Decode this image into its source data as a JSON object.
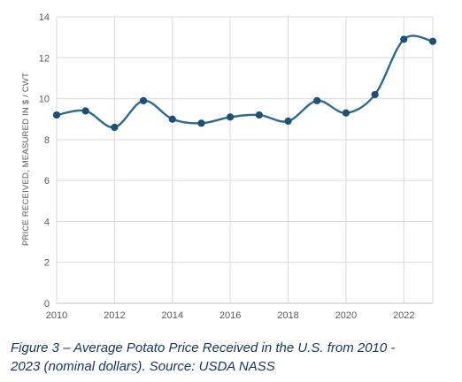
{
  "chart_data": {
    "type": "line",
    "title": "",
    "xlabel": "",
    "ylabel": "PRICE RECEIVED, MEASURED IN $ / CWT",
    "xlim": [
      2010,
      2023
    ],
    "ylim": [
      0,
      14
    ],
    "x_ticks": [
      2010,
      2012,
      2014,
      2016,
      2018,
      2020,
      2022
    ],
    "y_ticks": [
      0,
      2,
      4,
      6,
      8,
      10,
      12,
      14
    ],
    "grid": true,
    "legend": "none",
    "line_color": "#2e6a8f",
    "series": [
      {
        "x": [
          2010,
          2011,
          2012,
          2013,
          2014,
          2015,
          2016,
          2017,
          2018,
          2019,
          2020,
          2021,
          2022,
          2023
        ],
        "values": [
          9.2,
          9.4,
          8.6,
          9.9,
          9.0,
          8.8,
          9.1,
          9.2,
          8.9,
          9.9,
          9.3,
          10.2,
          12.9,
          12.8
        ]
      }
    ]
  },
  "caption": {
    "line1": "Figure 3 – Average Potato Price Received in the U.S. from 2010 -",
    "line2": "2023 (nominal dollars). Source: USDA NASS"
  }
}
